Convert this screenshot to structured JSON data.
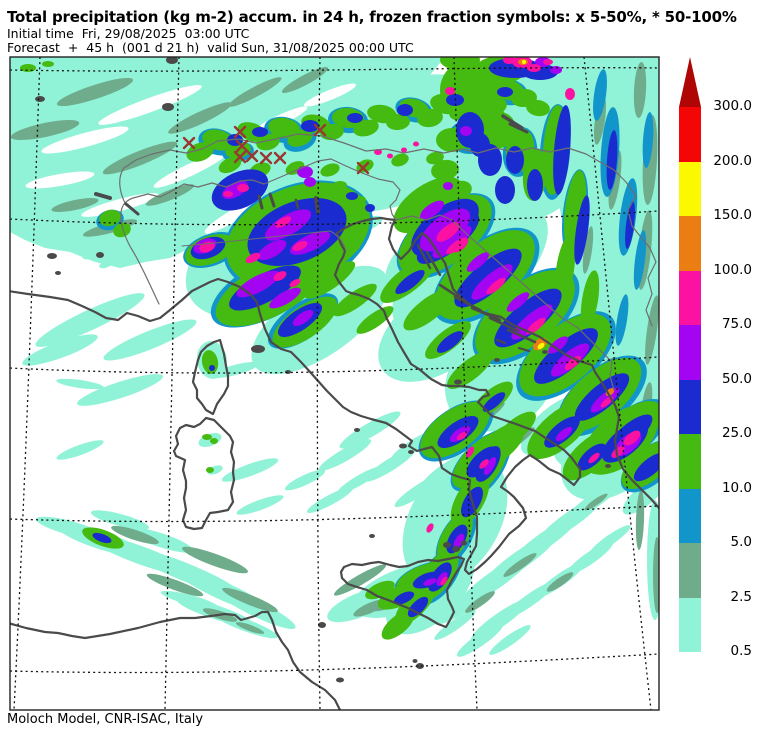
{
  "header": {
    "title": "Total precipitation (kg m-2) accum. in 24 h, frozen fraction symbols: x 5-50%, * 50-100%",
    "init_line": "Initial time  Fri, 29/08/2025  03:00 UTC",
    "forecast_line": "Forecast  +  45 h  (001 d 21 h)  valid Sun, 31/08/2025 00:00 UTC"
  },
  "footer": {
    "credit": "Moloch Model, CNR-ISAC, Italy"
  },
  "colorbar": {
    "overflow_arrow_color": "#B00505",
    "cells": [
      {
        "color": "#F40606",
        "label": "300.0"
      },
      {
        "color": "#FCF800",
        "label": "200.0"
      },
      {
        "color": "#EC7D13",
        "label": "150.0"
      },
      {
        "color": "#FB12A2",
        "label": "100.0"
      },
      {
        "color": "#A304F2",
        "label": "75.0"
      },
      {
        "color": "#1A2CD0",
        "label": "50.0"
      },
      {
        "color": "#45BA10",
        "label": "25.0"
      },
      {
        "color": "#1295CB",
        "label": "10.0"
      },
      {
        "color": "#6EAC8C",
        "label": "5.0"
      },
      {
        "color": "#90F3D7",
        "label": "2.5"
      }
    ],
    "min_label": "0.5"
  },
  "palette": {
    "aqua": "#90F3D7",
    "seagreen": "#6EAC8C",
    "steelblue": "#1295CB",
    "green": "#45BA10",
    "blue": "#1A2CD0",
    "violet": "#A304F2",
    "magenta": "#FB12A2",
    "orange": "#EC7D13",
    "yellow": "#FCF800",
    "white": "#FFFFFF",
    "coast": "#4A4A4A",
    "border": "#6E6E6E",
    "grid": "#111111",
    "frame": "#222222"
  },
  "frozen_symbols": {
    "x_meaning": "x 5-50%",
    "star_meaning": "* 50-100%",
    "color": "#993732",
    "x_positions": [
      [
        189,
        143
      ],
      [
        240,
        132
      ],
      [
        242,
        146
      ],
      [
        240,
        157
      ],
      [
        252,
        156
      ],
      [
        266,
        158
      ],
      [
        280,
        158
      ],
      [
        320,
        130
      ],
      [
        363,
        168
      ]
    ]
  }
}
